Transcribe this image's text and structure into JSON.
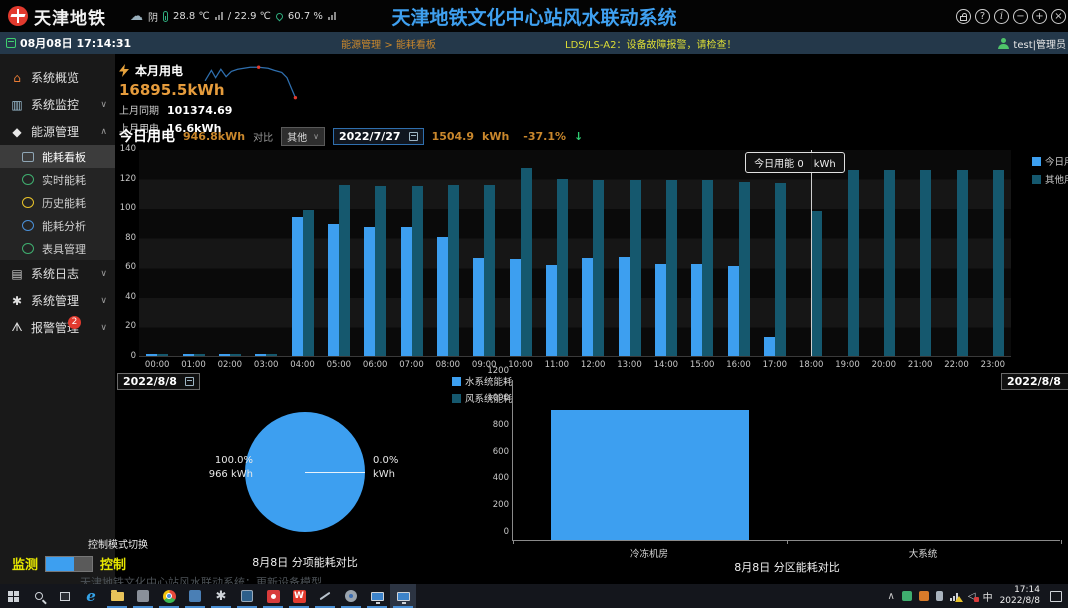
{
  "header": {
    "logo_text": "天津地铁",
    "weather": {
      "condition": "阴",
      "temp": "28.8 ℃",
      "temp2": "/ 22.9 ℃",
      "humidity": "60.7 %"
    },
    "title": "天津地铁文化中心站风水联动系统",
    "window_controls": [
      {
        "name": "lock",
        "glyph": ""
      },
      {
        "name": "help",
        "glyph": "?"
      },
      {
        "name": "info",
        "glyph": "i"
      },
      {
        "name": "minimize",
        "glyph": "−"
      },
      {
        "name": "maximize",
        "glyph": "+"
      },
      {
        "name": "close",
        "glyph": "×"
      }
    ]
  },
  "subheader": {
    "datetime": "08月08日 17:14:31",
    "breadcrumb": "能源管理 > 能耗看板",
    "alert": "LDS/LS-A2：设备故障报警，请检查！",
    "user": "test|管理员"
  },
  "sidebar": {
    "items": [
      {
        "label": "系统概览",
        "icon": "home-icon",
        "glyph": "⌂",
        "color": "#e87b35"
      },
      {
        "label": "系统监控",
        "icon": "monitor-icon",
        "glyph": "▥",
        "color": "#9fc3d8",
        "chevron": "∨"
      },
      {
        "label": "能源管理",
        "icon": "energy-icon",
        "glyph": "◆",
        "color": "#e8e8e8",
        "chevron": "∧",
        "children": [
          "能耗看板",
          "实时能耗",
          "历史能耗",
          "能耗分析",
          "表具管理"
        ],
        "child_icons": [
          "dashboard-icon",
          "realtime-icon",
          "history-icon",
          "analysis-icon",
          "meter-icon"
        ],
        "child_icon_colors": [
          "#8fa6b5",
          "#3fae6f",
          "#e8c32a",
          "#4a90d8",
          "#3fae6f"
        ],
        "active_child": "能耗看板"
      },
      {
        "label": "系统日志",
        "icon": "log-icon",
        "glyph": "▤",
        "color": "#c8c8c8",
        "chevron": "∨"
      },
      {
        "label": "系统管理",
        "icon": "gear-icon",
        "glyph": "✱",
        "color": "#e0e0e0",
        "chevron": "∨"
      },
      {
        "label": "报警管理",
        "icon": "alarm-icon",
        "glyph": "ᗑ",
        "color": "#e0e0e0",
        "chevron": "∨",
        "badge": "2"
      }
    ]
  },
  "stats": {
    "title": "本月用电",
    "value": "16895.5kWh",
    "rows": [
      {
        "label": "上月同期",
        "value": "101374.69"
      },
      {
        "label": "上月用电",
        "value": "16.6kWh"
      }
    ]
  },
  "today": {
    "title": "今日用电",
    "value": "946.8kWh",
    "compare_label": "对比",
    "select_value": "其他",
    "select_chevron": "∨",
    "date": "2022/7/27",
    "compare_value": "1504.9",
    "unit": "kWh",
    "delta": "-37.1%",
    "delta_arrow": "↓"
  },
  "dates": {
    "left": "2022/8/8",
    "right": "2022/8/8"
  },
  "controls": {
    "label": "控制模式切换",
    "left": "监测",
    "right": "控制"
  },
  "chart_data": [
    {
      "type": "bar",
      "title": "今日用电",
      "categories": [
        "00:00",
        "01:00",
        "02:00",
        "03:00",
        "04:00",
        "05:00",
        "06:00",
        "07:00",
        "08:00",
        "09:00",
        "10:00",
        "11:00",
        "12:00",
        "13:00",
        "14:00",
        "15:00",
        "16:00",
        "17:00",
        "18:00",
        "19:00",
        "20:00",
        "21:00",
        "22:00",
        "23:00"
      ],
      "series": [
        {
          "name": "今日用能",
          "color": "#3d9ff0",
          "values": [
            1.5,
            1.5,
            1.5,
            1,
            94,
            89.5,
            87.5,
            87,
            80.5,
            66,
            65.5,
            61.5,
            66.5,
            67,
            62,
            62,
            61,
            13,
            0,
            0,
            0,
            0,
            0,
            0
          ]
        },
        {
          "name": "其他用能",
          "color": "#15586e",
          "values": [
            1,
            1,
            1,
            1,
            99,
            115.5,
            115,
            115,
            115.5,
            115.5,
            127,
            120,
            119,
            119,
            119,
            119,
            118,
            117,
            98,
            126,
            125.5,
            125.5,
            125.5,
            126
          ]
        }
      ],
      "ylim": [
        0,
        140
      ],
      "ytick_step": 20,
      "legend_position": "top-right",
      "tooltip": {
        "category": "18:00",
        "series": "今日用能",
        "value": "0",
        "unit": "kWh"
      }
    },
    {
      "type": "pie",
      "title": "8月8日 分项能耗对比",
      "legend": [
        "水系统能耗",
        "风系统能耗"
      ],
      "legend_colors": [
        "#3d9ff0",
        "#15586e"
      ],
      "slices": [
        {
          "name": "水系统能耗",
          "percent": "100.0%",
          "value": "966  kWh",
          "color": "#3d9ff0"
        },
        {
          "name": "风系统能耗",
          "percent": "0.0%",
          "value": "kWh",
          "color": "#15586e"
        }
      ]
    },
    {
      "type": "bar",
      "title": "8月8日 分区能耗对比",
      "categories": [
        "冷冻机房",
        "大系统"
      ],
      "values": [
        966,
        0
      ],
      "color": "#3d9ff0",
      "ylim": [
        0,
        1200
      ],
      "ytick_step": 200
    }
  ],
  "sparkline": {
    "points": [
      [
        2,
        16
      ],
      [
        8,
        6
      ],
      [
        12,
        13
      ],
      [
        17,
        5
      ],
      [
        22,
        12
      ],
      [
        27,
        7
      ],
      [
        33,
        5
      ],
      [
        45,
        3
      ],
      [
        53,
        3
      ],
      [
        62,
        4
      ],
      [
        68,
        6
      ],
      [
        75,
        8
      ],
      [
        80,
        13
      ],
      [
        85,
        25
      ],
      [
        88,
        32
      ]
    ],
    "marker_points": [
      [
        53,
        3
      ],
      [
        88,
        32
      ]
    ],
    "line_color": "#2f6fae",
    "marker_color": "#e23a2e"
  },
  "taskbar": {
    "toast": "天津地铁文化中心站风水联动系统：更新设备模型...",
    "input_indicator": "中",
    "time": "17:14",
    "date": "2022/8/8",
    "tray_chevron": "∧",
    "mute_glyph": "◁"
  }
}
